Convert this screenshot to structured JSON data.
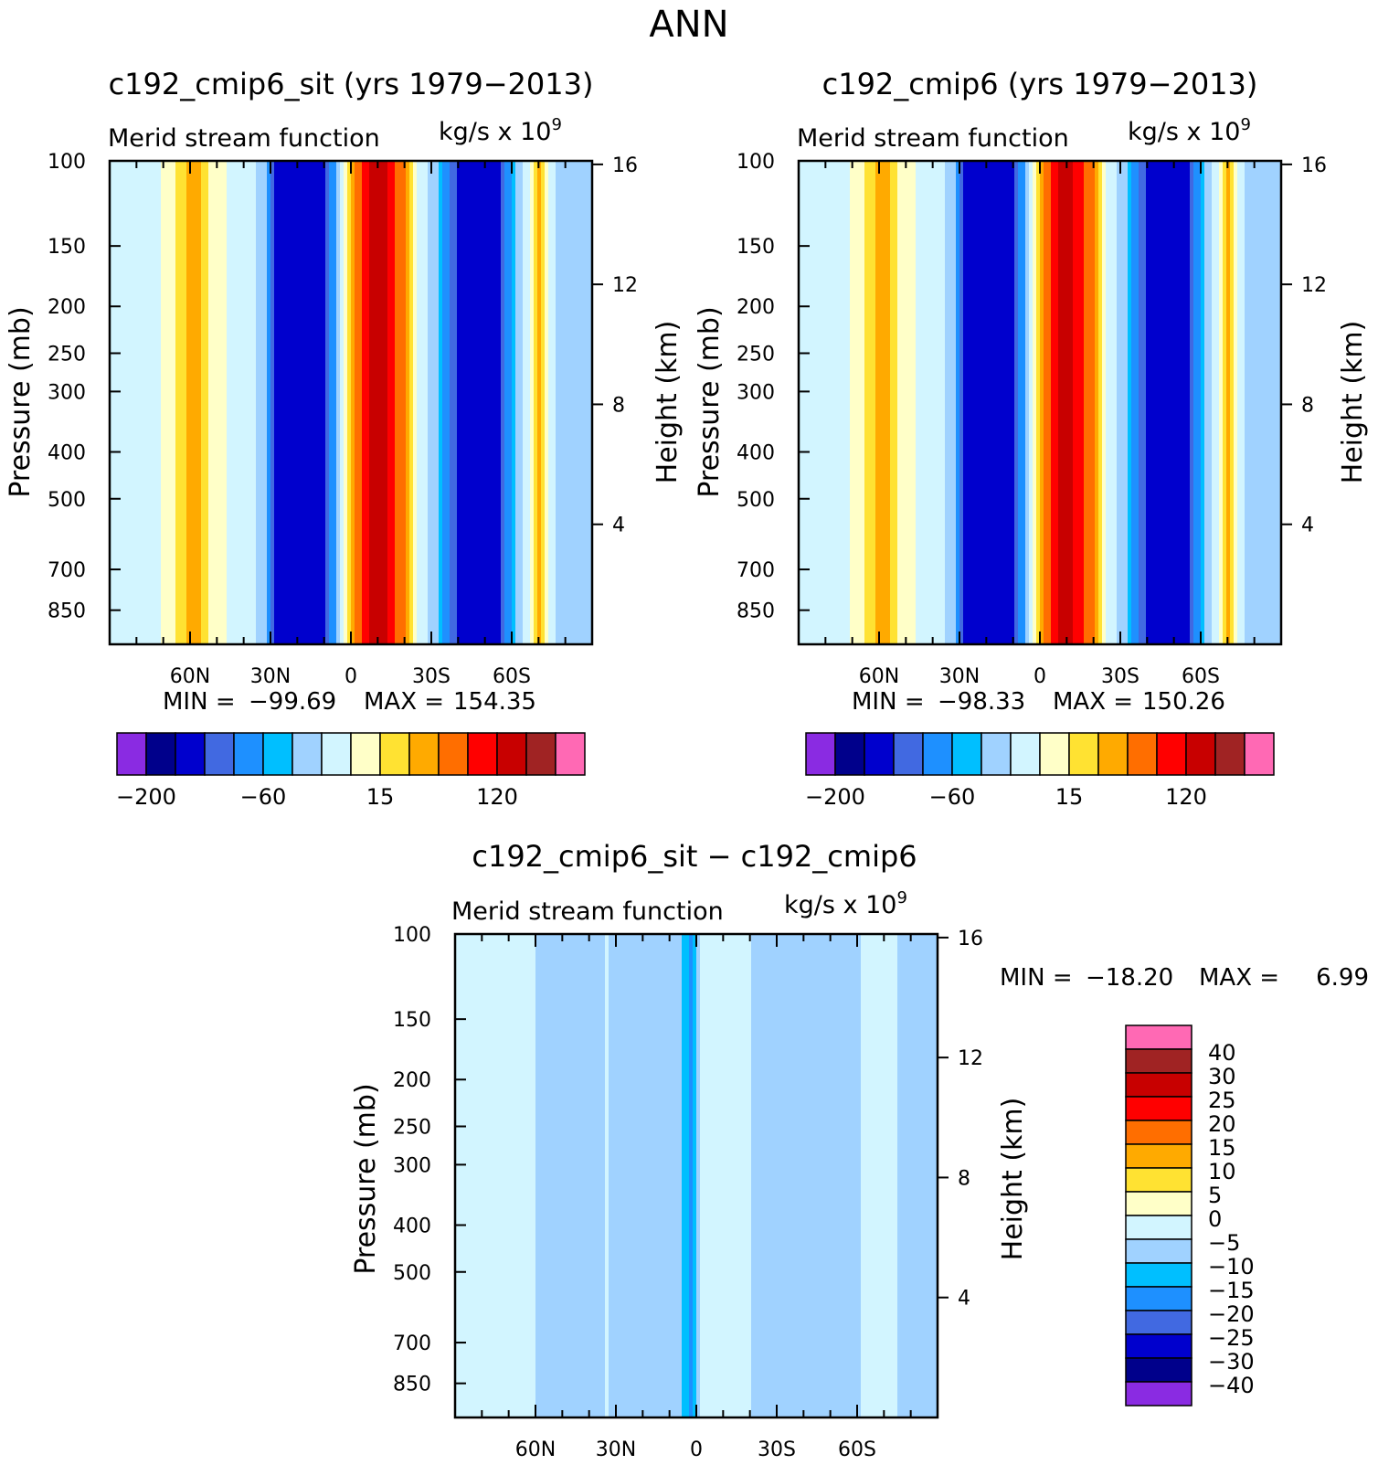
{
  "figure_title": "ANN",
  "colors": {
    "abs_scale": [
      "#8a2be2",
      "#00008b",
      "#0000cd",
      "#4169e1",
      "#1e90ff",
      "#00bfff",
      "#a0d2ff",
      "#d2f5ff",
      "#ffffc8",
      "#ffe232",
      "#ffaa00",
      "#ff6e00",
      "#ff0000",
      "#c80000",
      "#a02323",
      "#ff69b4"
    ],
    "diff_scale": [
      "#8a2be2",
      "#00008b",
      "#0000cd",
      "#4169e1",
      "#1e90ff",
      "#00bfff",
      "#a0d2ff",
      "#d2f5ff",
      "#ffffc8",
      "#ffe232",
      "#ffaa00",
      "#ff6e00",
      "#ff0000",
      "#c80000",
      "#a02323",
      "#ff69b4"
    ]
  },
  "chart_data": [
    {
      "type": "heatmap",
      "id": "panel-sit",
      "title": "c192_cmip6_sit (yrs 1979−2013)",
      "left_subtitle": "Merid stream function",
      "units_base": "kg/s x 10",
      "units_exp": "9",
      "ylabel": "Pressure (mb)",
      "y2label": "Height (km)",
      "pressure_ticks": [
        "100",
        "150",
        "200",
        "250",
        "300",
        "400",
        "500",
        "700",
        "850"
      ],
      "pressure_values": [
        100,
        150,
        200,
        250,
        300,
        400,
        500,
        700,
        850
      ],
      "ylim_pressure": [
        100,
        1000
      ],
      "height_ticks": [
        "16",
        "12",
        "8",
        "4"
      ],
      "height_values": [
        16,
        12,
        8,
        4
      ],
      "x_ticks": [
        "60N",
        "30N",
        "0",
        "30S",
        "60S"
      ],
      "x_values": [
        60,
        30,
        0,
        -30,
        -60
      ],
      "xlim": [
        90,
        -90
      ],
      "min_label": "MIN =",
      "min_value": "−99.69",
      "max_label": "MAX =",
      "max_value": "154.35",
      "colorbar_labels": [
        "−200",
        "−60",
        "15",
        "120"
      ],
      "lat_profile": [
        [
          90,
          0
        ],
        [
          80,
          3
        ],
        [
          74,
          10
        ],
        [
          68,
          20
        ],
        [
          62,
          40
        ],
        [
          56,
          40
        ],
        [
          50,
          20
        ],
        [
          44,
          10
        ],
        [
          40,
          3
        ],
        [
          36,
          0
        ],
        [
          32,
          -10
        ],
        [
          28,
          -60
        ],
        [
          24,
          -65
        ],
        [
          16,
          -75
        ],
        [
          10,
          -60
        ],
        [
          6,
          -25
        ],
        [
          4,
          0
        ],
        [
          2,
          20
        ],
        [
          -4,
          90
        ],
        [
          -10,
          150
        ],
        [
          -16,
          90
        ],
        [
          -20,
          60
        ],
        [
          -24,
          20
        ],
        [
          -28,
          3
        ],
        [
          -30,
          -3
        ],
        [
          -34,
          -15
        ],
        [
          -40,
          -60
        ],
        [
          -48,
          -65
        ],
        [
          -56,
          -60
        ],
        [
          -60,
          -15
        ],
        [
          -63,
          -5
        ],
        [
          -64,
          0
        ],
        [
          -66,
          10
        ],
        [
          -70,
          45
        ],
        [
          -74,
          10
        ],
        [
          -76,
          0
        ],
        [
          -78,
          -3
        ],
        [
          -82,
          -10
        ],
        [
          -86,
          -3
        ],
        [
          -90,
          0
        ]
      ]
    },
    {
      "type": "heatmap",
      "id": "panel-ctl",
      "title": "c192_cmip6 (yrs 1979−2013)",
      "left_subtitle": "Merid stream function",
      "units_base": "kg/s x 10",
      "units_exp": "9",
      "ylabel": "Pressure (mb)",
      "y2label": "Height (km)",
      "pressure_ticks": [
        "100",
        "150",
        "200",
        "250",
        "300",
        "400",
        "500",
        "700",
        "850"
      ],
      "pressure_values": [
        100,
        150,
        200,
        250,
        300,
        400,
        500,
        700,
        850
      ],
      "ylim_pressure": [
        100,
        1000
      ],
      "height_ticks": [
        "16",
        "12",
        "8",
        "4"
      ],
      "height_values": [
        16,
        12,
        8,
        4
      ],
      "x_ticks": [
        "60N",
        "30N",
        "0",
        "30S",
        "60S"
      ],
      "x_values": [
        60,
        30,
        0,
        -30,
        -60
      ],
      "xlim": [
        90,
        -90
      ],
      "min_label": "MIN =",
      "min_value": "−98.33",
      "max_label": "MAX =",
      "max_value": "150.26",
      "colorbar_labels": [
        "−200",
        "−60",
        "15",
        "120"
      ],
      "lat_profile": [
        [
          90,
          0
        ],
        [
          80,
          3
        ],
        [
          74,
          10
        ],
        [
          68,
          20
        ],
        [
          62,
          40
        ],
        [
          56,
          40
        ],
        [
          50,
          20
        ],
        [
          44,
          10
        ],
        [
          40,
          3
        ],
        [
          36,
          0
        ],
        [
          32,
          -10
        ],
        [
          28,
          -60
        ],
        [
          24,
          -65
        ],
        [
          16,
          -75
        ],
        [
          10,
          -60
        ],
        [
          6,
          -25
        ],
        [
          4,
          0
        ],
        [
          2,
          20
        ],
        [
          -4,
          90
        ],
        [
          -10,
          148
        ],
        [
          -16,
          90
        ],
        [
          -20,
          60
        ],
        [
          -24,
          20
        ],
        [
          -28,
          3
        ],
        [
          -30,
          -3
        ],
        [
          -34,
          -15
        ],
        [
          -40,
          -60
        ],
        [
          -48,
          -65
        ],
        [
          -56,
          -60
        ],
        [
          -60,
          -15
        ],
        [
          -63,
          -5
        ],
        [
          -64,
          0
        ],
        [
          -66,
          10
        ],
        [
          -70,
          45
        ],
        [
          -74,
          10
        ],
        [
          -76,
          0
        ],
        [
          -78,
          -3
        ],
        [
          -82,
          -10
        ],
        [
          -86,
          -3
        ],
        [
          -90,
          0
        ]
      ]
    },
    {
      "type": "heatmap",
      "id": "panel-diff",
      "title": "c192_cmip6_sit − c192_cmip6",
      "left_subtitle": "Merid stream function",
      "units_base": "kg/s x 10",
      "units_exp": "9",
      "ylabel": "Pressure (mb)",
      "y2label": "Height (km)",
      "pressure_ticks": [
        "100",
        "150",
        "200",
        "250",
        "300",
        "400",
        "500",
        "700",
        "850"
      ],
      "pressure_values": [
        100,
        150,
        200,
        250,
        300,
        400,
        500,
        700,
        850
      ],
      "ylim_pressure": [
        100,
        1000
      ],
      "height_ticks": [
        "16",
        "12",
        "8",
        "4"
      ],
      "height_values": [
        16,
        12,
        8,
        4
      ],
      "x_ticks": [
        "60N",
        "30N",
        "0",
        "30S",
        "60S"
      ],
      "x_values": [
        60,
        30,
        0,
        -30,
        -60
      ],
      "xlim": [
        90,
        -90
      ],
      "min_label": "MIN =",
      "min_value": "−18.20",
      "max_label": "MAX =",
      "max_value": "6.99",
      "colorbar_labels": [
        "40",
        "30",
        "25",
        "20",
        "15",
        "10",
        "5",
        "0",
        "−5",
        "−10",
        "−15",
        "−20",
        "−25",
        "−30",
        "−40"
      ],
      "lat_profile": [
        [
          90,
          1
        ],
        [
          60,
          1
        ],
        [
          58,
          -2
        ],
        [
          36,
          -2
        ],
        [
          34,
          1
        ],
        [
          30,
          -2
        ],
        [
          6,
          -2
        ],
        [
          4,
          -7
        ],
        [
          2,
          -12
        ],
        [
          0,
          -7
        ],
        [
          -2,
          1
        ],
        [
          -20,
          1
        ],
        [
          -22,
          -2
        ],
        [
          -60,
          -2
        ],
        [
          -62,
          1
        ],
        [
          -74,
          1
        ],
        [
          -76,
          -2
        ],
        [
          -90,
          -2
        ]
      ]
    }
  ]
}
